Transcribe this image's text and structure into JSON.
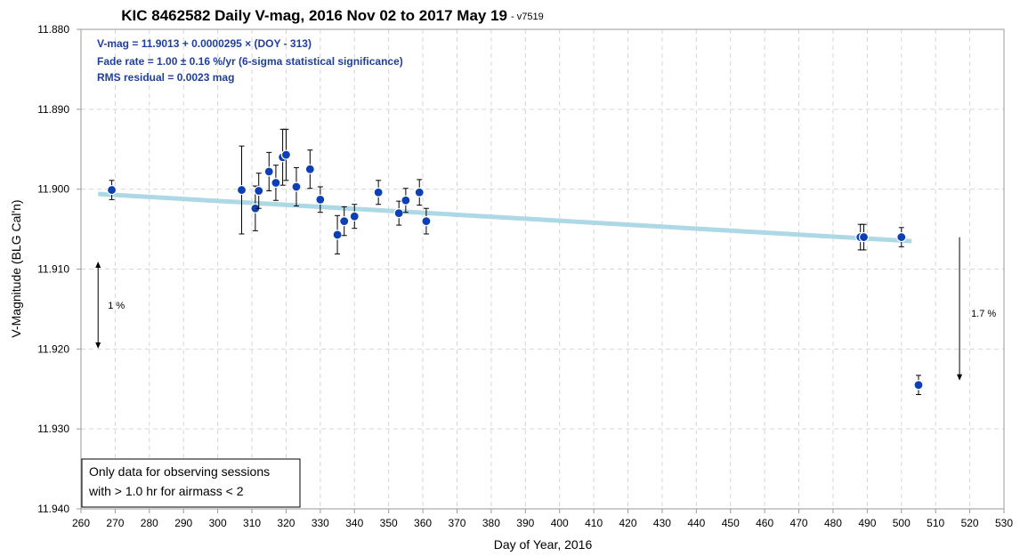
{
  "chart_data": {
    "type": "scatter",
    "title": "KIC 8462582 Daily V-mag, 2016 Nov 02 to 2017 May 19",
    "version": "- v7519",
    "xlabel": "Day of Year, 2016",
    "ylabel": "V-Magnitude (BLG Cal'n)",
    "xlim": [
      260,
      530
    ],
    "ylim": [
      11.88,
      11.94
    ],
    "y_inverted": true,
    "x_ticks": [
      "260",
      "270",
      "280",
      "290",
      "300",
      "310",
      "320",
      "330",
      "340",
      "350",
      "360",
      "370",
      "380",
      "390",
      "400",
      "410",
      "420",
      "430",
      "440",
      "450",
      "460",
      "470",
      "480",
      "490",
      "500",
      "510",
      "520",
      "530"
    ],
    "y_ticks": [
      "11.880",
      "11.890",
      "11.900",
      "11.910",
      "11.920",
      "11.930",
      "11.940"
    ],
    "grid": true,
    "annotations": [
      "V-mag = 11.9013 + 0.0000295 × (DOY - 313)",
      "Fade rate = 1.00 ± 0.16 %/yr  (6-sigma statistical significance)",
      "RMS residual = 0.0023 mag"
    ],
    "note_lines": [
      "Only data for observing sessions",
      "with > 1.0 hr for airmass < 2"
    ],
    "scale_left_label": "1 %",
    "scale_right_label": "1.7 %",
    "scale_left": {
      "x": 265,
      "y1": 11.9095,
      "y2": 11.9195
    },
    "scale_right": {
      "x": 517,
      "y1": 11.906,
      "y2": 11.9235
    },
    "fit": {
      "x1": 265,
      "y1": 11.9006,
      "x2": 503,
      "y2": 11.9065,
      "color": "#add8e6"
    },
    "point_color": "#0d3fb5",
    "points": [
      {
        "x": 269,
        "y": 11.9001,
        "err": 0.0012
      },
      {
        "x": 307,
        "y": 11.9001,
        "err": 0.0055
      },
      {
        "x": 311,
        "y": 11.9024,
        "err": 0.0028
      },
      {
        "x": 312,
        "y": 11.9002,
        "err": 0.0022
      },
      {
        "x": 315,
        "y": 11.8978,
        "err": 0.0024
      },
      {
        "x": 317,
        "y": 11.8992,
        "err": 0.0022
      },
      {
        "x": 319,
        "y": 11.896,
        "err": 0.0035
      },
      {
        "x": 320,
        "y": 11.8957,
        "err": 0.0032
      },
      {
        "x": 323,
        "y": 11.8997,
        "err": 0.0024
      },
      {
        "x": 327,
        "y": 11.8975,
        "err": 0.0024
      },
      {
        "x": 330,
        "y": 11.9013,
        "err": 0.0016
      },
      {
        "x": 335,
        "y": 11.9057,
        "err": 0.0024
      },
      {
        "x": 337,
        "y": 11.904,
        "err": 0.0018
      },
      {
        "x": 340,
        "y": 11.9034,
        "err": 0.0015
      },
      {
        "x": 347,
        "y": 11.9004,
        "err": 0.0015
      },
      {
        "x": 353,
        "y": 11.903,
        "err": 0.0015
      },
      {
        "x": 355,
        "y": 11.9014,
        "err": 0.0015
      },
      {
        "x": 359,
        "y": 11.9004,
        "err": 0.0016
      },
      {
        "x": 361,
        "y": 11.904,
        "err": 0.0016
      },
      {
        "x": 488,
        "y": 11.906,
        "err": 0.0016
      },
      {
        "x": 489,
        "y": 11.906,
        "err": 0.0016
      },
      {
        "x": 500,
        "y": 11.906,
        "err": 0.0012
      },
      {
        "x": 505,
        "y": 11.9245,
        "err": 0.0012
      }
    ]
  }
}
